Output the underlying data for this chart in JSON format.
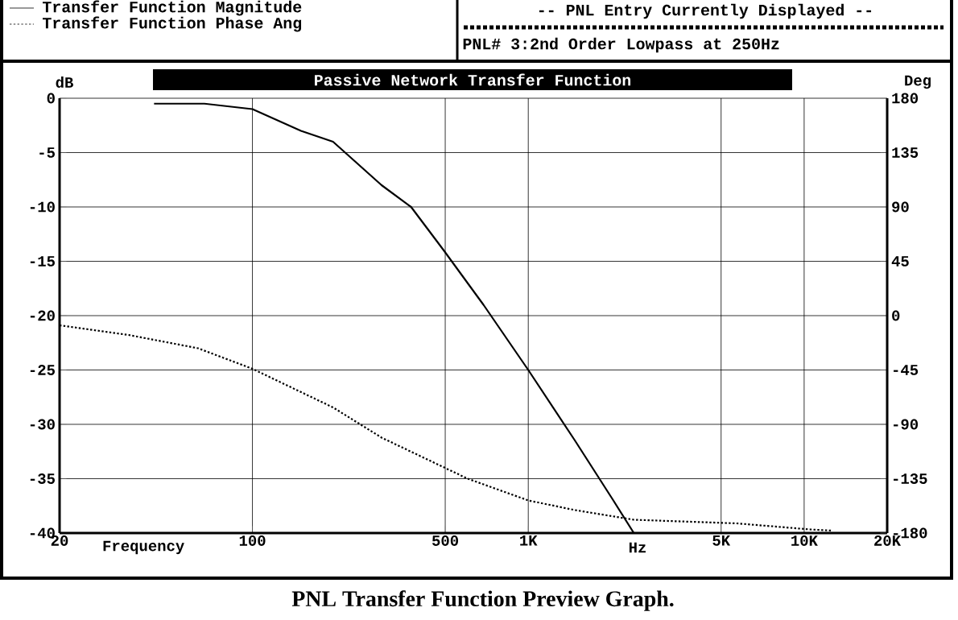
{
  "chart_data": {
    "type": "line",
    "title": "Passive Network Transfer Function",
    "xlabel": "Frequency",
    "ylabel": "dB",
    "y2label": "Deg",
    "annotations": [
      "Hz",
      "-- PNL Entry Currently Displayed --",
      "PNL#  3:2nd Order Lowpass at 250Hz",
      "PNL Transfer Function Preview Graph."
    ],
    "log": "x",
    "grid": true,
    "legend": "top left",
    "xlim": [
      20,
      20000
    ],
    "xticks": [
      20,
      100,
      500,
      {
        "value": 1000,
        "label": "1K"
      },
      {
        "value": 5000,
        "label": "5K"
      },
      {
        "value": 10000,
        "label": "10K"
      },
      {
        "value": 20000,
        "label": "20K"
      }
    ],
    "ylim": [
      -40,
      0
    ],
    "yticks": [
      -40,
      -35,
      -30,
      -25,
      -20,
      -15,
      -10,
      -5,
      0
    ],
    "y2lim": [
      -180,
      180
    ],
    "y2ticks": [
      -180,
      -135,
      -90,
      -45,
      0,
      45,
      90,
      135,
      180
    ],
    "series": [
      {
        "name": "Transfer Function Magnitude",
        "color": "#000000",
        "line_style": "solid",
        "x": [
          44,
          67,
          100,
          150,
          196,
          294,
          376,
          494,
          688,
          1000,
          1477,
          2034,
          2414
        ],
        "values": [
          -0.5,
          -0.5,
          -1,
          -3,
          -4,
          -8,
          -10,
          -14,
          -19,
          -25,
          -31.5,
          -37,
          -40
        ]
      },
      {
        "name": "Transfer Function Phase Ang",
        "color": "#000000",
        "line_style": "dotted",
        "axis": "y2",
        "x": [
          20,
          35.6,
          63.5,
          100,
          196,
          294,
          603,
          1000,
          1477,
          2414,
          5700,
          10500,
          12700
        ],
        "values": [
          -8,
          -16,
          -27,
          -44,
          -76,
          -101,
          -135,
          -153,
          -161,
          -169,
          -172,
          -177,
          -178
        ]
      }
    ]
  }
}
